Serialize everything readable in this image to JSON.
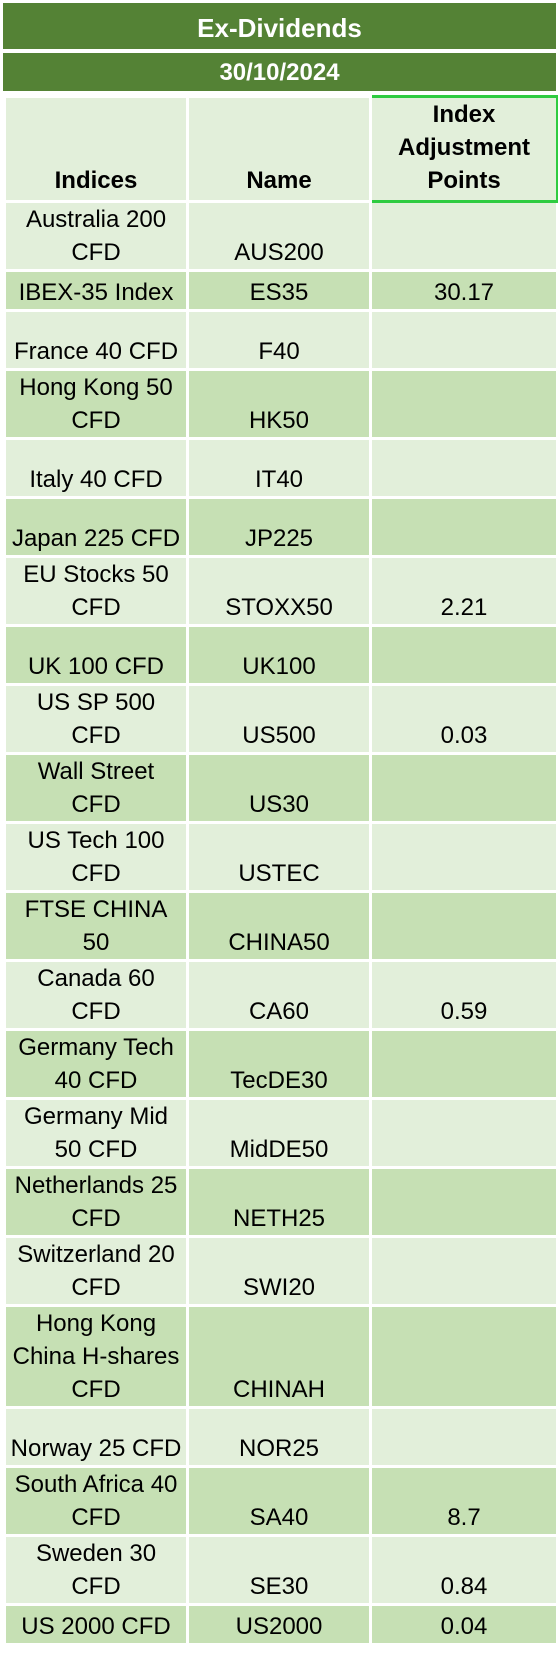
{
  "title": "Ex-Dividends",
  "date": "30/10/2024",
  "headers": {
    "indices": "Indices",
    "name": "Name",
    "points": "Index Adjustment Points"
  },
  "rows": [
    {
      "index": "Australia 200 CFD",
      "name": "AUS200",
      "points": ""
    },
    {
      "index": "IBEX-35 Index",
      "name": "ES35",
      "points": "30.17"
    },
    {
      "index": "France 40 CFD",
      "name": "F40",
      "points": ""
    },
    {
      "index": "Hong Kong 50 CFD",
      "name": "HK50",
      "points": ""
    },
    {
      "index": "Italy 40 CFD",
      "name": "IT40",
      "points": ""
    },
    {
      "index": "Japan 225 CFD",
      "name": "JP225",
      "points": ""
    },
    {
      "index": "EU Stocks 50 CFD",
      "name": "STOXX50",
      "points": "2.21"
    },
    {
      "index": "UK 100 CFD",
      "name": "UK100",
      "points": ""
    },
    {
      "index": "US SP 500 CFD",
      "name": "US500",
      "points": "0.03"
    },
    {
      "index": "Wall Street CFD",
      "name": "US30",
      "points": ""
    },
    {
      "index": "US Tech 100 CFD",
      "name": "USTEC",
      "points": ""
    },
    {
      "index": "FTSE CHINA 50",
      "name": "CHINA50",
      "points": ""
    },
    {
      "index": "Canada 60 CFD",
      "name": "CA60",
      "points": "0.59"
    },
    {
      "index": "Germany Tech 40 CFD",
      "name": "TecDE30",
      "points": ""
    },
    {
      "index": "Germany Mid 50 CFD",
      "name": "MidDE50",
      "points": ""
    },
    {
      "index": "Netherlands 25 CFD",
      "name": "NETH25",
      "points": ""
    },
    {
      "index": "Switzerland 20 CFD",
      "name": "SWI20",
      "points": ""
    },
    {
      "index": "Hong Kong China H-shares CFD",
      "name": "CHINAH",
      "points": ""
    },
    {
      "index": "Norway 25 CFD",
      "name": "NOR25",
      "points": ""
    },
    {
      "index": "South Africa 40 CFD",
      "name": "SA40",
      "points": "8.7"
    },
    {
      "index": "Sweden 30 CFD",
      "name": "SE30",
      "points": "0.84"
    },
    {
      "index": "US 2000 CFD",
      "name": "US2000",
      "points": "0.04"
    }
  ]
}
